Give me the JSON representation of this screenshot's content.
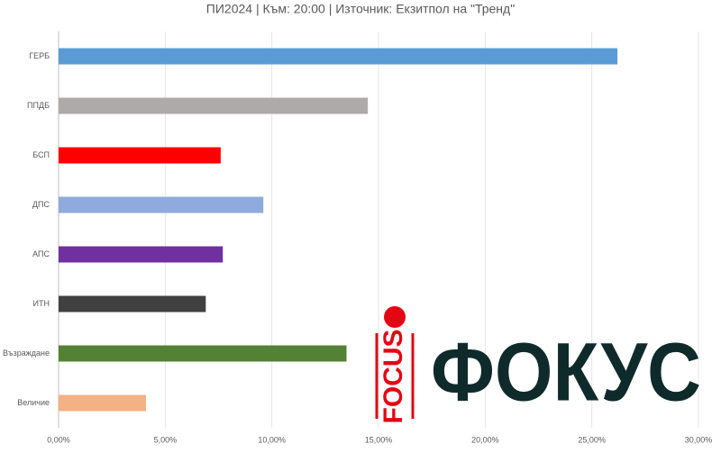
{
  "chart_data": {
    "type": "bar",
    "orientation": "horizontal",
    "title": "ПИ2024  | Към: 20:00  | Източник: Екзитпол на \"Тренд\"",
    "categories": [
      "ГЕРБ",
      "ППДБ",
      "БСП",
      "ДПС",
      "АПС",
      "ИТН",
      "Възраждане",
      "Величие"
    ],
    "values": [
      26.2,
      14.5,
      7.6,
      9.6,
      7.7,
      6.9,
      13.5,
      4.1
    ],
    "colors": [
      "#5b9bd5",
      "#aeaaaa",
      "#ff0000",
      "#8faadc",
      "#7030a0",
      "#404040",
      "#548235",
      "#f4b183"
    ],
    "xlim": [
      0,
      30
    ],
    "xticks": [
      {
        "value": 0,
        "label": "0,00%"
      },
      {
        "value": 5,
        "label": "5,00%"
      },
      {
        "value": 10,
        "label": "10,00%"
      },
      {
        "value": 15,
        "label": "15,00%"
      },
      {
        "value": 20,
        "label": "20,00%"
      },
      {
        "value": 25,
        "label": "25,00%"
      },
      {
        "value": 30,
        "label": "30,00%"
      }
    ],
    "grid": true
  },
  "logo": {
    "small": "FOCUS",
    "large": "ФОКУС"
  }
}
